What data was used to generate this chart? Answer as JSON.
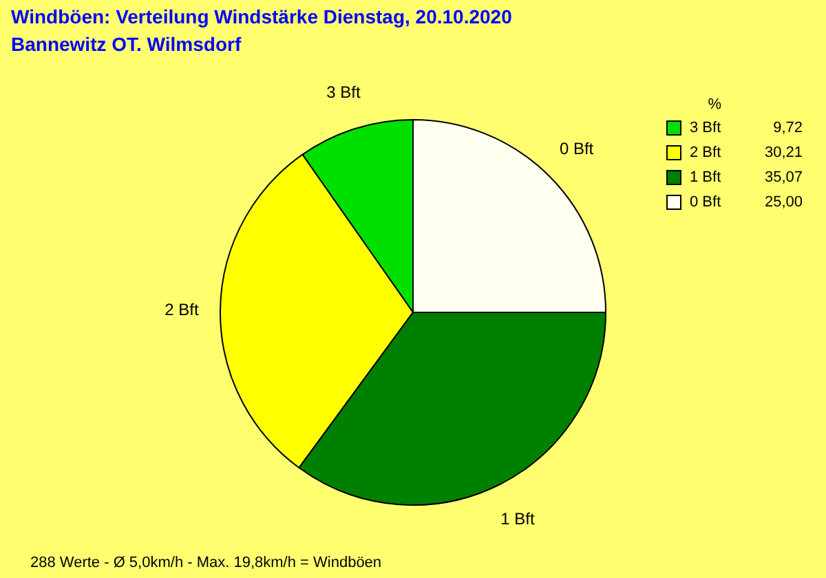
{
  "chart_data": {
    "type": "pie",
    "title": "Windböen: Verteilung Windstärke  Dienstag, 20.10.2020",
    "subtitle": "Bannewitz OT. Wilmsdorf",
    "legend_title": "%",
    "legend": "top right",
    "categories": [
      "3 Bft",
      "2 Bft",
      "1 Bft",
      "0 Bft"
    ],
    "values": [
      9.72,
      30.21,
      35.07,
      25.0
    ],
    "value_labels": [
      "9,72",
      "30,21",
      "35,07",
      "25,00"
    ],
    "colors": [
      "#00e000",
      "#ffff00",
      "#008000",
      "#fffff0"
    ],
    "annotations": [
      "288 Werte   -   Ø 5,0km/h   -   Max. 19,8km/h = Windböen"
    ]
  }
}
